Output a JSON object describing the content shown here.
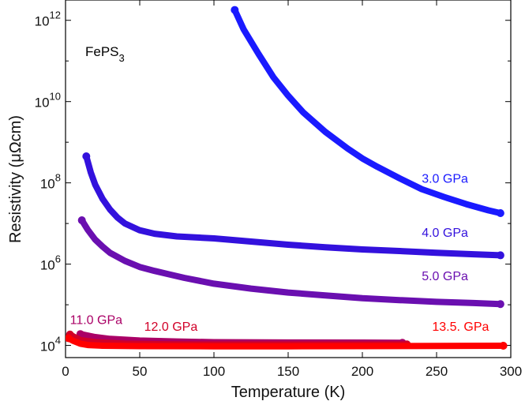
{
  "chart_data": {
    "type": "scatter",
    "title": "",
    "annotation": {
      "text": "FePS",
      "subscript": "3"
    },
    "xlabel": "Temperature (K)",
    "ylabel": "Resistivity (μΩcm)",
    "xlim": [
      0,
      300
    ],
    "ylim_log10": [
      3.7,
      12.5
    ],
    "y_scale": "log",
    "x_ticks": [
      0,
      50,
      100,
      150,
      200,
      250,
      300
    ],
    "y_ticks": [
      {
        "exp": 4,
        "base": "10",
        "sup": "4"
      },
      {
        "exp": 6,
        "base": "10",
        "sup": "6"
      },
      {
        "exp": 8,
        "base": "10",
        "sup": "8"
      },
      {
        "exp": 10,
        "base": "10",
        "sup": "10"
      },
      {
        "exp": 12,
        "base": "10",
        "sup": "12"
      }
    ],
    "grid": false,
    "legend": "inline labels",
    "series": [
      {
        "name": "3.0 GPa",
        "color": "#1a1aff",
        "label_pos": [
          240,
          8.0
        ],
        "points": [
          [
            114,
            1800000000000.0
          ],
          [
            120,
            600000000000.0
          ],
          [
            130,
            150000000000.0
          ],
          [
            140,
            40000000000.0
          ],
          [
            150,
            14000000000.0
          ],
          [
            160,
            5500000000.0
          ],
          [
            175,
            1800000000.0
          ],
          [
            190,
            700000000.0
          ],
          [
            200,
            400000000.0
          ],
          [
            210,
            250000000.0
          ],
          [
            225,
            130000000.0
          ],
          [
            240,
            70000000.0
          ],
          [
            255,
            45000000.0
          ],
          [
            270,
            30000000.0
          ],
          [
            285,
            21000000.0
          ],
          [
            293,
            18000000.0
          ]
        ]
      },
      {
        "name": "4.0 GPa",
        "color": "#3311dd",
        "label_pos": [
          240,
          6.67
        ],
        "points": [
          [
            14,
            450000000.0
          ],
          [
            17,
            180000000.0
          ],
          [
            20,
            90000000.0
          ],
          [
            25,
            40000000.0
          ],
          [
            30,
            22000000.0
          ],
          [
            35,
            14000000.0
          ],
          [
            40,
            10000000.0
          ],
          [
            50,
            6800000.0
          ],
          [
            60,
            5600000.0
          ],
          [
            75,
            4800000.0
          ],
          [
            100,
            4300000.0
          ],
          [
            125,
            3600000.0
          ],
          [
            150,
            3000000.0
          ],
          [
            175,
            2600000.0
          ],
          [
            200,
            2300000.0
          ],
          [
            225,
            2100000.0
          ],
          [
            250,
            1900000.0
          ],
          [
            275,
            1750000.0
          ],
          [
            293,
            1650000.0
          ]
        ]
      },
      {
        "name": "5.0 GPa",
        "color": "#6a0fb0",
        "label_pos": [
          240,
          5.6
        ],
        "points": [
          [
            11,
            12000000.0
          ],
          [
            15,
            7000000.0
          ],
          [
            20,
            4000000.0
          ],
          [
            25,
            2700000.0
          ],
          [
            30,
            1900000.0
          ],
          [
            40,
            1200000.0
          ],
          [
            50,
            850000.0
          ],
          [
            60,
            680000.0
          ],
          [
            70,
            560000.0
          ],
          [
            80,
            460000.0
          ],
          [
            100,
            330000.0
          ],
          [
            125,
            250000.0
          ],
          [
            150,
            200000.0
          ],
          [
            175,
            170000.0
          ],
          [
            200,
            145000.0
          ],
          [
            225,
            130000.0
          ],
          [
            250,
            118000.0
          ],
          [
            275,
            110000.0
          ],
          [
            293,
            104000.0
          ]
        ]
      },
      {
        "name": "11.0 GPa",
        "color": "#aa0066",
        "label_pos": [
          3,
          4.53
        ],
        "points": [
          [
            10,
            19000.0
          ],
          [
            20,
            16000.0
          ],
          [
            30,
            14500.0
          ],
          [
            50,
            13200.0
          ],
          [
            75,
            12500.0
          ],
          [
            100,
            12000.0
          ],
          [
            150,
            11800.0
          ],
          [
            200,
            11700.0
          ],
          [
            227,
            11600.0
          ]
        ]
      },
      {
        "name": "12.0 GPa",
        "color": "#d10028",
        "label_pos": [
          53,
          4.36
        ],
        "points": [
          [
            3,
            18500.0
          ],
          [
            6,
            16000.0
          ],
          [
            10,
            13500.0
          ],
          [
            20,
            12000.0
          ],
          [
            40,
            11000.0
          ],
          [
            70,
            10600.0
          ],
          [
            100,
            10500.0
          ],
          [
            150,
            10500.0
          ],
          [
            200,
            10500.0
          ],
          [
            230,
            10600.0
          ]
        ]
      },
      {
        "name": "13.5. GPa",
        "color": "#ff0000",
        "label_pos": [
          247,
          4.36
        ],
        "points": [
          [
            2,
            15000.0
          ],
          [
            5,
            13000.0
          ],
          [
            10,
            11000.0
          ],
          [
            15,
            10200.0
          ],
          [
            25,
            9800.0
          ],
          [
            50,
            9600.0
          ],
          [
            100,
            9500.0
          ],
          [
            150,
            9500.0
          ],
          [
            200,
            9600.0
          ],
          [
            250,
            9700.0
          ],
          [
            295,
            9800.0
          ]
        ]
      }
    ]
  }
}
